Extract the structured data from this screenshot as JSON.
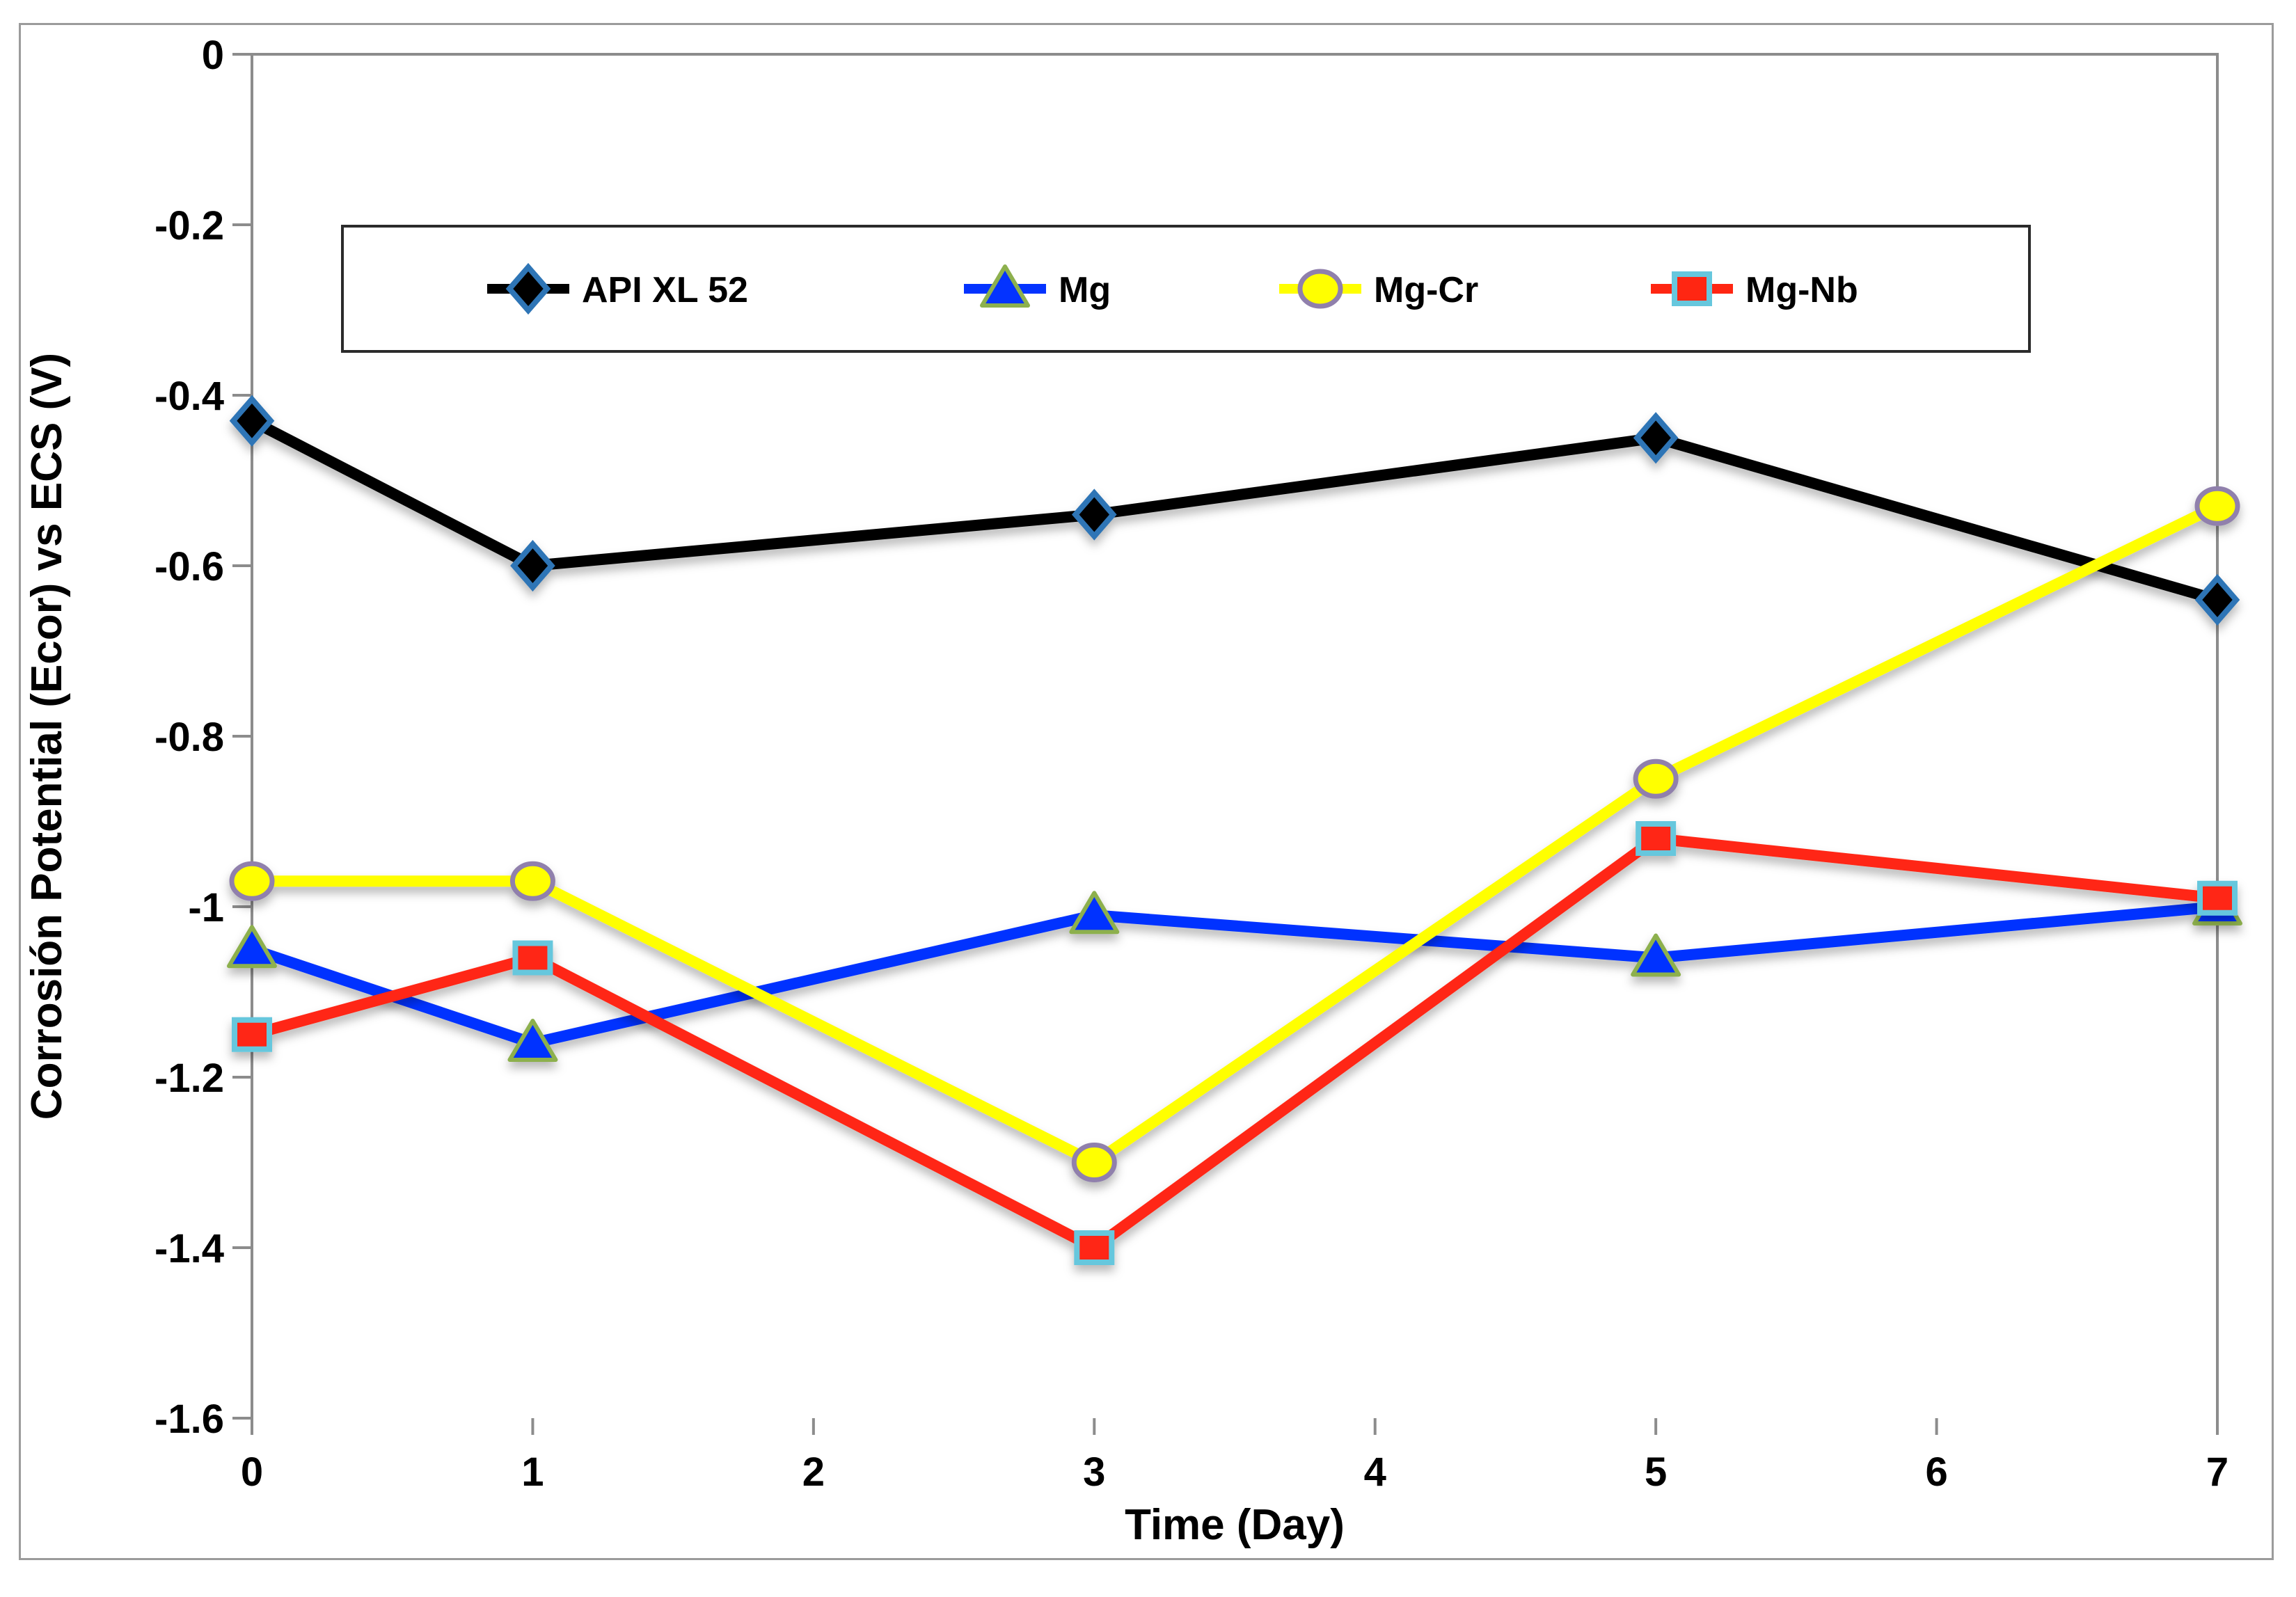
{
  "figure": {
    "kind": "excel-style line chart",
    "background": "#FFFFFF"
  },
  "chart_data": {
    "type": "line",
    "title": "",
    "xlabel": "Time (Day)",
    "ylabel": "Corrosión Potential (Ecor) vs ECS (V)",
    "x": [
      0,
      1,
      3,
      5,
      7
    ],
    "xlim": [
      0,
      7
    ],
    "ylim": [
      -1.6,
      0
    ],
    "x_ticks": [
      0,
      1,
      2,
      3,
      4,
      5,
      6,
      7
    ],
    "x_tick_labels": [
      "0",
      "1",
      "2",
      "3",
      "4",
      "5",
      "6",
      "7"
    ],
    "y_ticks": [
      0,
      -0.2,
      -0.4,
      -0.6,
      -0.8,
      -1,
      -1.2,
      -1.4,
      -1.6
    ],
    "y_tick_labels": [
      "0",
      "-0.2",
      "-0.4",
      "-0.6",
      "-0.8",
      "-1",
      "-1.2",
      "-1.4",
      "-1.6"
    ],
    "grid": false,
    "legend_position": "top, framed box inside plot width",
    "series": [
      {
        "name": "API XL 52",
        "color": "#000000",
        "marker": "diamond",
        "marker_fill": "#000000",
        "marker_stroke": "#2E75B6",
        "values": [
          -0.43,
          -0.6,
          -0.54,
          -0.45,
          -0.64
        ]
      },
      {
        "name": "Mg",
        "color": "#0433FF",
        "marker": "triangle",
        "marker_fill": "#0433FF",
        "marker_stroke": "#8DB04E",
        "values": [
          -1.05,
          -1.16,
          -1.01,
          -1.06,
          -1.0
        ]
      },
      {
        "name": "Mg-Cr",
        "color": "#FFFF00",
        "marker": "circle",
        "marker_fill": "#FFFF00",
        "marker_stroke": "#9080AC",
        "values": [
          -0.97,
          -0.97,
          -1.3,
          -0.85,
          -0.53
        ]
      },
      {
        "name": "Mg-Nb",
        "color": "#FF2612",
        "marker": "square",
        "marker_fill": "#FF2612",
        "marker_stroke": "#66C7DD",
        "values": [
          -1.15,
          -1.06,
          -1.4,
          -0.92,
          -0.99
        ]
      }
    ],
    "colors": {
      "axis": "#8C8C8C",
      "figure_frame": "#9B9B9B",
      "legend_border": "#2B2B2B",
      "text": "#000000",
      "background": "#FFFFFF"
    }
  }
}
